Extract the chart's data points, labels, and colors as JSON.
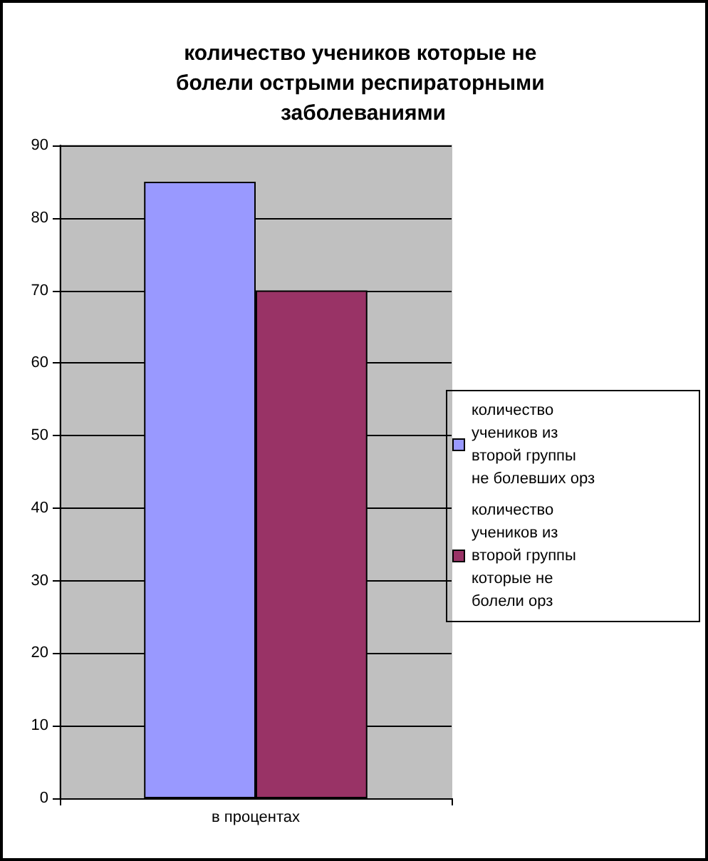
{
  "chart_data": {
    "type": "bar",
    "title": "количество учеников которые не болели острыми респираторными заболеваниями",
    "categories": [
      "в процентах"
    ],
    "series": [
      {
        "name": "количество учеников из второй группы не болевших орз",
        "color": "#9999ff",
        "values": [
          85
        ]
      },
      {
        "name": "количество учеников из второй группы  которые не болели орз",
        "color": "#993366",
        "values": [
          70
        ]
      }
    ],
    "ylim": [
      0,
      90
    ],
    "yticks": [
      0,
      10,
      20,
      30,
      40,
      50,
      60,
      70,
      80,
      90
    ],
    "grid": "y",
    "legend": "right"
  }
}
